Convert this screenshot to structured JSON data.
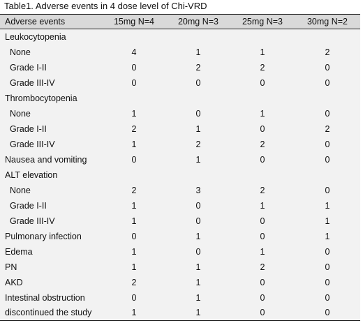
{
  "caption": "Table1. Adverse events in 4 dose level of Chi-VRD",
  "headers": [
    "Adverse events",
    "15mg N=4",
    "20mg N=3",
    "25mg N=3",
    "30mg N=2"
  ],
  "rows": [
    {
      "label": "Leukocytopenia",
      "sub": false,
      "values": [
        "",
        "",
        "",
        ""
      ]
    },
    {
      "label": "None",
      "sub": true,
      "values": [
        "4",
        "1",
        "1",
        "2"
      ]
    },
    {
      "label": "Grade I-II",
      "sub": true,
      "values": [
        "0",
        "2",
        "2",
        "0"
      ]
    },
    {
      "label": "Grade III-IV",
      "sub": true,
      "values": [
        "0",
        "0",
        "0",
        "0"
      ]
    },
    {
      "label": "Thrombocytopenia",
      "sub": false,
      "values": [
        "",
        "",
        "",
        ""
      ]
    },
    {
      "label": "None",
      "sub": true,
      "values": [
        "1",
        "0",
        "1",
        "0"
      ]
    },
    {
      "label": "Grade I-II",
      "sub": true,
      "values": [
        "2",
        "1",
        "0",
        "2"
      ]
    },
    {
      "label": "Grade III-IV",
      "sub": true,
      "values": [
        "1",
        "2",
        "2",
        "0"
      ]
    },
    {
      "label": "Nausea and vomiting",
      "sub": false,
      "values": [
        "0",
        "1",
        "0",
        "0"
      ]
    },
    {
      "label": "ALT elevation",
      "sub": false,
      "values": [
        "",
        "",
        "",
        ""
      ]
    },
    {
      "label": "None",
      "sub": true,
      "values": [
        "2",
        "3",
        "2",
        "0"
      ]
    },
    {
      "label": "Grade I-II",
      "sub": true,
      "values": [
        "1",
        "0",
        "1",
        "1"
      ]
    },
    {
      "label": "Grade III-IV",
      "sub": true,
      "values": [
        "1",
        "0",
        "0",
        "1"
      ]
    },
    {
      "label": "Pulmonary infection",
      "sub": false,
      "values": [
        "0",
        "1",
        "0",
        "1"
      ]
    },
    {
      "label": "Edema",
      "sub": false,
      "values": [
        "1",
        "0",
        "1",
        "0"
      ]
    },
    {
      "label": "PN",
      "sub": false,
      "values": [
        "1",
        "1",
        "2",
        "0"
      ]
    },
    {
      "label": "AKD",
      "sub": false,
      "values": [
        "2",
        "1",
        "0",
        "0"
      ]
    },
    {
      "label": "Intestinal obstruction",
      "sub": false,
      "values": [
        "0",
        "1",
        "0",
        "0"
      ]
    },
    {
      "label": "discontinued the study",
      "sub": false,
      "values": [
        "1",
        "1",
        "0",
        "0"
      ]
    }
  ]
}
